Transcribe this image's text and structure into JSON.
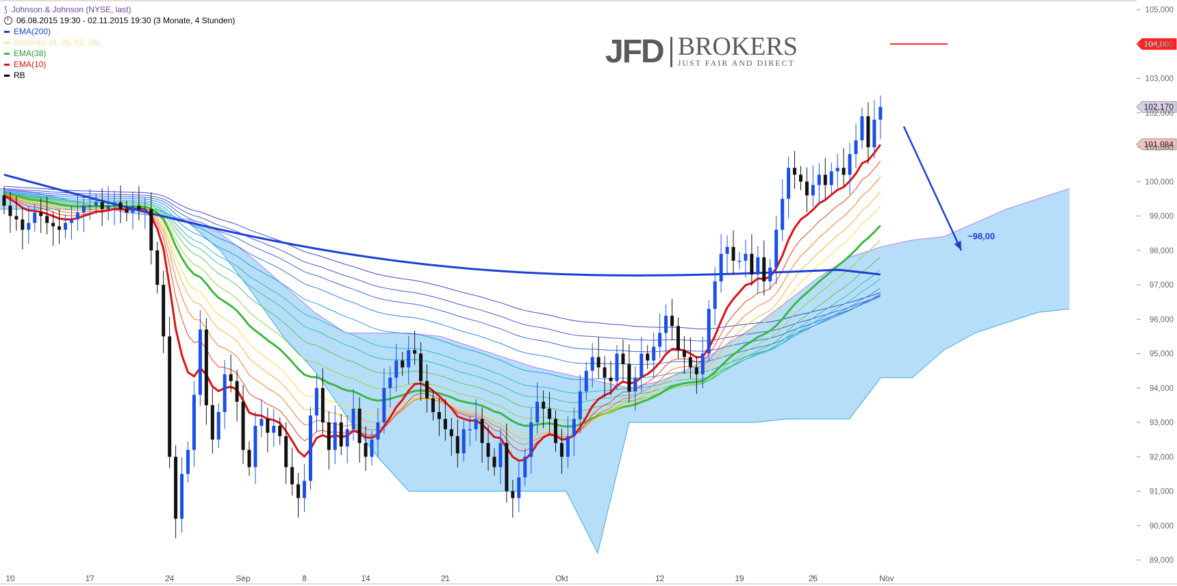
{
  "legend": {
    "title": "Johnson & Johnson (NYSE, last)",
    "range": "06.08.2015 19:30 - 02.11.2015 19:30 (3 Monate, 4 Stunden)",
    "items": [
      {
        "label": "EMA(200)",
        "color": "#1a3fd6"
      },
      {
        "label": "Ichimoku (9, 26, 52, 26)",
        "color": "#f5e6a0"
      },
      {
        "label": "EMA(38)",
        "color": "#3cb83c"
      },
      {
        "label": "EMA(10)",
        "color": "#e01010"
      },
      {
        "label": "RB",
        "color": "#000000"
      }
    ]
  },
  "logo": {
    "main": "JFD",
    "brand": "BROKERS",
    "tagline": "JUST FAIR AND DIRECT"
  },
  "annotation": {
    "target_label": "~98,00"
  },
  "chart_data": {
    "type": "candlestick",
    "title": "Johnson & Johnson (NYSE, last)",
    "ylim": [
      89,
      105.2
    ],
    "y_ticks": [
      "89,000",
      "90,000",
      "91,000",
      "92,000",
      "93,000",
      "94,000",
      "95,000",
      "96,000",
      "97,000",
      "98,000",
      "99,000",
      "100,000",
      "101,000",
      "102,000",
      "103,000",
      "104,000",
      "105,000"
    ],
    "x_ticks": [
      {
        "label": "10",
        "i": 1
      },
      {
        "label": "17",
        "i": 14
      },
      {
        "label": "24",
        "i": 27
      },
      {
        "label": "Sep",
        "i": 39
      },
      {
        "label": "8",
        "i": 49
      },
      {
        "label": "14",
        "i": 59
      },
      {
        "label": "21",
        "i": 72
      },
      {
        "label": "Okt",
        "i": 91
      },
      {
        "label": "12",
        "i": 107
      },
      {
        "label": "19",
        "i": 120
      },
      {
        "label": "26",
        "i": 132
      },
      {
        "label": "Nov",
        "i": 144
      }
    ],
    "price_labels": [
      {
        "value": "104,000",
        "y": 104.0,
        "color": "#ff2020"
      },
      {
        "value": "102,170",
        "y": 102.17,
        "color": "#d8d0e8"
      },
      {
        "value": "101,084",
        "y": 101.084,
        "color": "#f4c0c0"
      }
    ],
    "resistance_level": 104.0,
    "target_level": 98.0,
    "closes": [
      99.3,
      99.0,
      98.9,
      98.6,
      98.8,
      99.1,
      99.0,
      98.8,
      98.7,
      98.6,
      98.8,
      98.9,
      99.1,
      99.3,
      99.3,
      99.4,
      99.2,
      99.3,
      99.4,
      99.2,
      99.1,
      99.3,
      99.2,
      99.2,
      98.0,
      97.0,
      95.5,
      92.0,
      90.2,
      91.5,
      92.2,
      93.8,
      95.7,
      93.5,
      92.5,
      93.3,
      94.4,
      94.2,
      93.6,
      92.2,
      91.7,
      92.9,
      93.1,
      92.7,
      92.9,
      92.6,
      91.7,
      91.2,
      90.8,
      91.3,
      93.2,
      94.0,
      93.0,
      92.2,
      93.0,
      92.3,
      92.8,
      93.4,
      92.4,
      92.0,
      92.5,
      93.0,
      94.0,
      94.3,
      94.8,
      94.6,
      95.1,
      95.0,
      94.2,
      93.7,
      93.3,
      93.1,
      92.8,
      92.6,
      92.1,
      92.8,
      92.8,
      93.1,
      92.4,
      92.0,
      91.7,
      92.4,
      91.0,
      90.8,
      91.4,
      92.0,
      93.0,
      93.6,
      93.4,
      93.1,
      92.4,
      92.0,
      92.6,
      93.1,
      93.9,
      94.5,
      94.9,
      94.6,
      94.3,
      94.2,
      95.0,
      94.7,
      93.9,
      94.3,
      95.0,
      94.8,
      95.2,
      95.6,
      96.1,
      95.8,
      95.1,
      94.9,
      94.6,
      94.4,
      95.0,
      96.3,
      97.1,
      97.9,
      98.1,
      97.7,
      97.7,
      97.9,
      97.3,
      97.8,
      97.1,
      97.5,
      98.6,
      99.5,
      100.4,
      100.2,
      100.0,
      99.6,
      99.9,
      100.2,
      99.9,
      100.3,
      100.4,
      100.2,
      100.8,
      101.2,
      101.9,
      101.0,
      101.8,
      102.17
    ],
    "rainbow_periods": [
      10,
      15,
      20,
      25,
      30,
      38,
      45,
      55,
      65,
      75,
      90,
      110,
      130,
      150,
      175,
      200
    ],
    "ema200": {
      "start": 100.2,
      "end": 97.3
    },
    "cloud_upper": [
      99.8,
      99.7,
      99.5,
      99.3,
      99.1,
      99.0,
      98.9,
      98.5,
      97.8,
      97.0,
      96.2,
      95.6,
      95.6,
      95.6,
      95.5,
      95.2,
      94.9,
      94.6,
      94.4,
      94.2,
      94.0,
      94.2,
      94.6,
      95.2,
      95.8,
      96.5,
      97.2,
      97.8,
      98.1,
      98.3,
      98.4,
      98.8,
      99.2,
      99.5,
      99.8
    ],
    "cloud_lower": [
      99.2,
      99.2,
      99.2,
      99.2,
      99.2,
      99.2,
      98.8,
      98.0,
      96.8,
      95.5,
      94.5,
      93.2,
      92.0,
      91.0,
      91.0,
      91.0,
      91.0,
      91.0,
      91.0,
      89.2,
      93.0,
      93.0,
      93.0,
      93.0,
      93.0,
      93.1,
      93.1,
      93.1,
      94.3,
      94.3,
      95.1,
      95.6,
      95.9,
      96.2,
      96.3
    ]
  }
}
